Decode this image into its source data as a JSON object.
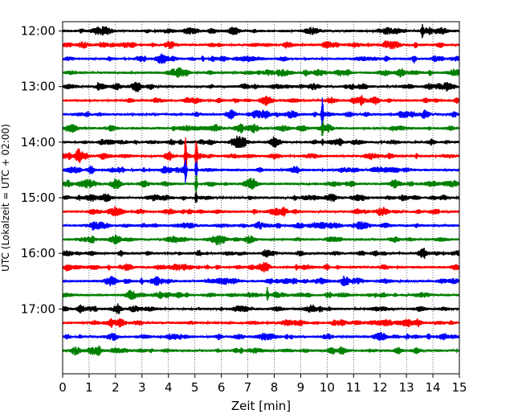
{
  "chart_data": {
    "type": "line",
    "title": "",
    "xlabel": "Zeit  [min]",
    "ylabel": "UTC (Lokalzeit = UTC + 02:00)",
    "xlim": [
      0,
      15
    ],
    "x_ticks": [
      "0",
      "1",
      "2",
      "3",
      "4",
      "5",
      "6",
      "7",
      "8",
      "9",
      "10",
      "11",
      "12",
      "13",
      "14",
      "15"
    ],
    "y_range_minutes_utc": [
      "11:50",
      "18:10"
    ],
    "y_tick_labels": [
      "12:00",
      "13:00",
      "14:00",
      "15:00",
      "16:00",
      "17:00"
    ],
    "grid_x": true,
    "trace_interval_min": 15,
    "trace_colors": [
      "#000000",
      "#ff0000",
      "#0000ff",
      "#008000"
    ],
    "traces": [
      {
        "start": "12:00",
        "events": [
          {
            "x": 13.6,
            "amp": 0.35
          }
        ]
      },
      {
        "start": "12:15",
        "events": []
      },
      {
        "start": "12:30",
        "events": [
          {
            "x": 5.3,
            "amp": 0.3
          }
        ]
      },
      {
        "start": "12:45",
        "events": []
      },
      {
        "start": "13:00",
        "events": []
      },
      {
        "start": "13:15",
        "events": []
      },
      {
        "start": "13:30",
        "events": [
          {
            "x": 9.82,
            "amp": 1.15
          }
        ]
      },
      {
        "start": "13:45",
        "events": [
          {
            "x": 9.82,
            "amp": 0.5
          }
        ]
      },
      {
        "start": "14:00",
        "events": [
          {
            "x": 9.82,
            "amp": 0.2
          }
        ]
      },
      {
        "start": "14:15",
        "events": [
          {
            "x": 4.65,
            "amp": 1.9
          },
          {
            "x": 5.05,
            "amp": 2.0
          }
        ]
      },
      {
        "start": "14:30",
        "events": [
          {
            "x": 4.65,
            "amp": 1.0
          },
          {
            "x": 5.05,
            "amp": 0.9
          }
        ]
      },
      {
        "start": "14:45",
        "events": [
          {
            "x": 5.05,
            "amp": 0.8
          }
        ]
      },
      {
        "start": "15:00",
        "events": [
          {
            "x": 5.05,
            "amp": 0.5
          }
        ]
      },
      {
        "start": "15:15",
        "events": []
      },
      {
        "start": "15:30",
        "events": []
      },
      {
        "start": "15:45",
        "events": []
      },
      {
        "start": "16:00",
        "events": []
      },
      {
        "start": "16:15",
        "events": []
      },
      {
        "start": "16:30",
        "events": []
      },
      {
        "start": "16:45",
        "events": [
          {
            "x": 7.75,
            "amp": 0.55
          }
        ]
      },
      {
        "start": "17:00",
        "events": []
      },
      {
        "start": "17:15",
        "events": []
      },
      {
        "start": "17:30",
        "events": []
      },
      {
        "start": "17:45",
        "events": []
      }
    ]
  }
}
